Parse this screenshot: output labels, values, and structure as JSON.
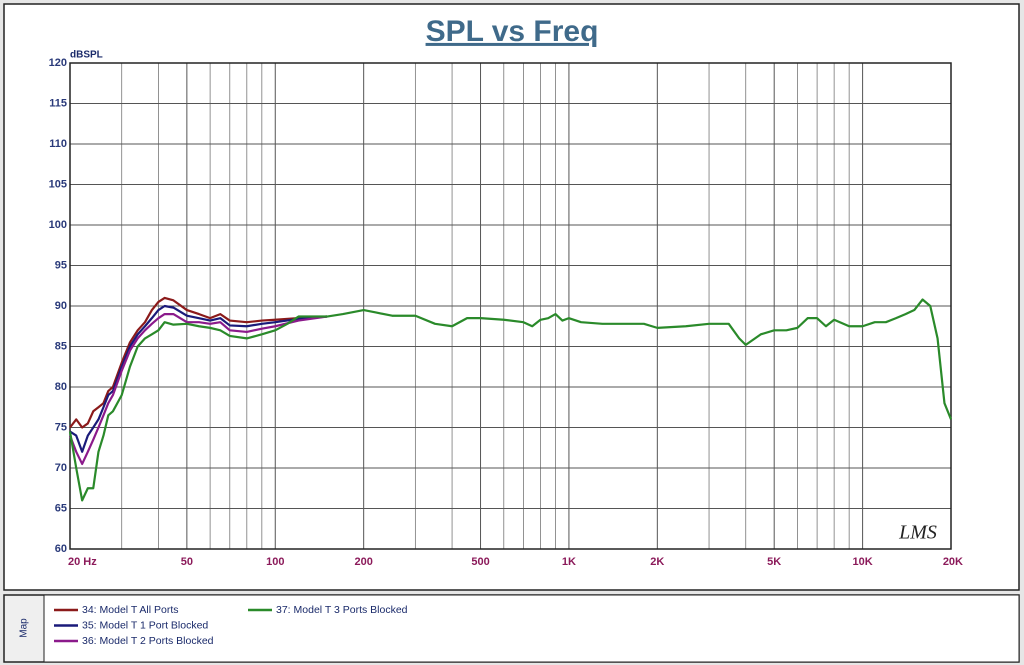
{
  "chart_data": {
    "type": "line",
    "title": "SPL vs Freq",
    "ylabel": "dBSPL",
    "watermark": "LMS",
    "legend_title": "Map",
    "xscale": "log",
    "grid": true,
    "xlim": [
      20,
      20000
    ],
    "ylim": [
      60,
      120
    ],
    "yticks": [
      60,
      65,
      70,
      75,
      80,
      85,
      90,
      95,
      100,
      105,
      110,
      115,
      120
    ],
    "xticks": [
      {
        "value": 20,
        "label": "20  Hz"
      },
      50,
      100,
      200,
      500,
      {
        "value": 1000,
        "label": "1K"
      },
      {
        "value": 2000,
        "label": "2K"
      },
      {
        "value": 5000,
        "label": "5K"
      },
      {
        "value": 10000,
        "label": "10K"
      },
      {
        "value": 20000,
        "label": "20K"
      }
    ],
    "xminorticks": [
      30,
      40,
      60,
      70,
      80,
      90,
      300,
      400,
      600,
      700,
      800,
      900,
      3000,
      4000,
      6000,
      7000,
      8000,
      9000
    ],
    "series": [
      {
        "name": "34: Model T All Ports",
        "color": "#8b1a1a",
        "x": [
          20,
          21,
          22,
          23,
          24,
          25,
          26,
          27,
          28,
          30,
          32,
          34,
          36,
          38,
          40,
          42,
          45,
          50,
          55,
          60,
          65,
          70,
          80,
          90,
          100,
          120,
          150
        ],
        "values": [
          75,
          76,
          75,
          75.5,
          77,
          77.5,
          78,
          79.5,
          80,
          83,
          85.5,
          87,
          88,
          89.5,
          90.5,
          91,
          90.7,
          89.5,
          89,
          88.5,
          89,
          88.2,
          88,
          88.2,
          88.3,
          88.5,
          88.7
        ]
      },
      {
        "name": "35: Model T 1 Port Blocked",
        "color": "#1a1a7a",
        "x": [
          20,
          21,
          22,
          23,
          24,
          25,
          26,
          27,
          28,
          30,
          32,
          34,
          36,
          38,
          40,
          42,
          45,
          50,
          55,
          60,
          65,
          70,
          80,
          90,
          100,
          120,
          150
        ],
        "values": [
          74.5,
          74,
          72,
          74,
          75,
          76,
          77.5,
          79,
          79.5,
          82.5,
          85,
          86.5,
          87.5,
          88.5,
          89.5,
          90,
          89.8,
          88.8,
          88.5,
          88.2,
          88.5,
          87.6,
          87.5,
          87.8,
          88,
          88.4,
          88.7
        ]
      },
      {
        "name": "36: Model T 2 Ports Blocked",
        "color": "#8b1a8b",
        "x": [
          20,
          21,
          22,
          23,
          24,
          25,
          26,
          27,
          28,
          30,
          32,
          34,
          36,
          38,
          40,
          42,
          45,
          50,
          55,
          60,
          65,
          70,
          80,
          90,
          100,
          120,
          150
        ],
        "values": [
          74,
          72,
          70.5,
          72,
          73.5,
          75,
          76.5,
          78,
          79,
          82,
          84.5,
          86,
          87,
          87.8,
          88.5,
          89,
          89,
          88,
          88,
          87.8,
          88,
          87,
          86.8,
          87.2,
          87.5,
          88.2,
          88.7
        ]
      },
      {
        "name": "37: Model T 3 Ports Blocked",
        "color": "#2a8a2a",
        "x": [
          20,
          21,
          22,
          23,
          24,
          25,
          26,
          27,
          28,
          30,
          32,
          34,
          36,
          38,
          40,
          42,
          45,
          50,
          55,
          60,
          65,
          70,
          80,
          90,
          100,
          110,
          120,
          150,
          170,
          200,
          220,
          250,
          300,
          350,
          400,
          450,
          500,
          600,
          700,
          750,
          800,
          850,
          900,
          950,
          1000,
          1100,
          1300,
          1500,
          1800,
          2000,
          2500,
          3000,
          3500,
          3800,
          4000,
          4500,
          5000,
          5500,
          6000,
          6500,
          7000,
          7500,
          8000,
          9000,
          10000,
          11000,
          12000,
          13000,
          14000,
          15000,
          16000,
          17000,
          18000,
          19000,
          20000
        ],
        "values": [
          74.5,
          70,
          66,
          67.5,
          67.5,
          72,
          74,
          76.5,
          77,
          79,
          82.5,
          85,
          86,
          86.5,
          87,
          88,
          87.7,
          87.8,
          87.5,
          87.3,
          87,
          86.3,
          86,
          86.5,
          87,
          87.8,
          88.7,
          88.7,
          89,
          89.5,
          89.2,
          88.8,
          88.8,
          87.8,
          87.5,
          88.5,
          88.5,
          88.3,
          88,
          87.5,
          88.3,
          88.5,
          89,
          88.2,
          88.5,
          88,
          87.8,
          87.8,
          87.8,
          87.3,
          87.5,
          87.8,
          87.8,
          86,
          85.2,
          86.5,
          87,
          87,
          87.3,
          88.5,
          88.5,
          87.5,
          88.3,
          87.5,
          87.5,
          88,
          88,
          88.5,
          89,
          89.5,
          90.8,
          90,
          86,
          78,
          76
        ]
      }
    ]
  }
}
